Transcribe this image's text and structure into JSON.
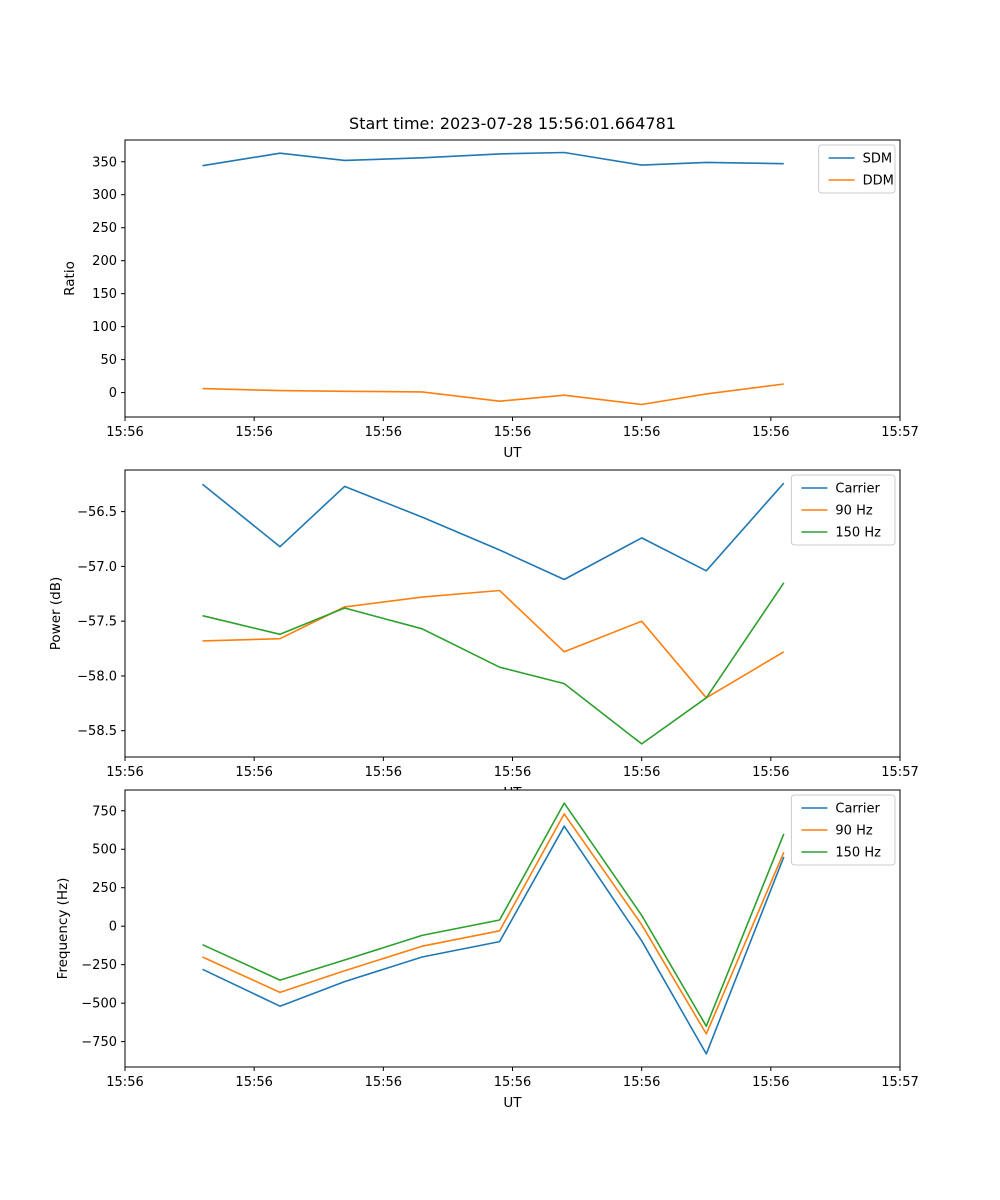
{
  "figure": {
    "title": "Start time: 2023-07-28 15:56:01.664781"
  },
  "colors": {
    "blue": "#1f77b4",
    "orange": "#ff7f0e",
    "green": "#2ca02c",
    "legend_border": "#cccccc",
    "axis": "#000000"
  },
  "chart_data": [
    {
      "type": "line",
      "title": "Start time: 2023-07-28 15:56:01.664781",
      "xlabel": "UT",
      "ylabel": "Ratio",
      "x": [
        6,
        12,
        17,
        23,
        29,
        34,
        40,
        45,
        51
      ],
      "xlim": [
        0,
        60
      ],
      "xticks": [
        0,
        10,
        20,
        30,
        40,
        50,
        60
      ],
      "xtick_labels": [
        "15:56",
        "15:56",
        "15:56",
        "15:56",
        "15:56",
        "15:56",
        "15:57"
      ],
      "ylim": [
        -37,
        383
      ],
      "yticks": [
        0,
        50,
        100,
        150,
        200,
        250,
        300,
        350
      ],
      "ytick_labels": [
        "0",
        "50",
        "100",
        "150",
        "200",
        "250",
        "300",
        "350"
      ],
      "grid": false,
      "legend_position": "upper right",
      "series": [
        {
          "name": "SDM",
          "color": "#1f77b4",
          "values": [
            344,
            363,
            352,
            356,
            362,
            364,
            345,
            349,
            347
          ]
        },
        {
          "name": "DDM",
          "color": "#ff7f0e",
          "values": [
            6,
            3,
            2,
            1,
            -13,
            -4,
            -18,
            -2,
            13
          ]
        }
      ]
    },
    {
      "type": "line",
      "title": "",
      "xlabel": "UT",
      "ylabel": "Power (dB)",
      "x": [
        6,
        12,
        17,
        23,
        29,
        34,
        40,
        45,
        51
      ],
      "xlim": [
        0,
        60
      ],
      "xticks": [
        0,
        10,
        20,
        30,
        40,
        50,
        60
      ],
      "xtick_labels": [
        "15:56",
        "15:56",
        "15:56",
        "15:56",
        "15:56",
        "15:56",
        "15:57"
      ],
      "ylim": [
        -58.74,
        -56.12
      ],
      "yticks": [
        -58.5,
        -58.0,
        -57.5,
        -57.0,
        -56.5
      ],
      "ytick_labels": [
        "−58.5",
        "−58.0",
        "−57.5",
        "−57.0",
        "−56.5"
      ],
      "grid": false,
      "legend_position": "upper right",
      "series": [
        {
          "name": "Carrier",
          "color": "#1f77b4",
          "values": [
            -56.25,
            -56.82,
            -56.27,
            -56.55,
            -56.85,
            -57.12,
            -56.74,
            -57.04,
            -56.24
          ]
        },
        {
          "name": "90 Hz",
          "color": "#ff7f0e",
          "values": [
            -57.68,
            -57.66,
            -57.37,
            -57.28,
            -57.22,
            -57.78,
            -57.5,
            -58.2,
            -57.78
          ]
        },
        {
          "name": "150 Hz",
          "color": "#2ca02c",
          "values": [
            -57.45,
            -57.62,
            -57.38,
            -57.57,
            -57.92,
            -58.07,
            -58.62,
            -58.2,
            -57.15
          ]
        }
      ]
    },
    {
      "type": "line",
      "title": "",
      "xlabel": "UT",
      "ylabel": "Frequency (Hz)",
      "x": [
        6,
        12,
        17,
        23,
        29,
        34,
        40,
        45,
        51
      ],
      "xlim": [
        0,
        60
      ],
      "xticks": [
        0,
        10,
        20,
        30,
        40,
        50,
        60
      ],
      "xtick_labels": [
        "15:56",
        "15:56",
        "15:56",
        "15:56",
        "15:56",
        "15:56",
        "15:57"
      ],
      "ylim": [
        -915,
        885
      ],
      "yticks": [
        -750,
        -500,
        -250,
        0,
        250,
        500,
        750
      ],
      "ytick_labels": [
        "−750",
        "−500",
        "−250",
        "0",
        "250",
        "500",
        "750"
      ],
      "grid": false,
      "legend_position": "upper right",
      "series": [
        {
          "name": "Carrier",
          "color": "#1f77b4",
          "values": [
            -280,
            -520,
            -360,
            -200,
            -100,
            650,
            -95,
            -830,
            450
          ]
        },
        {
          "name": "90 Hz",
          "color": "#ff7f0e",
          "values": [
            -200,
            -430,
            -290,
            -130,
            -30,
            730,
            10,
            -700,
            480
          ]
        },
        {
          "name": "150 Hz",
          "color": "#2ca02c",
          "values": [
            -120,
            -350,
            -220,
            -60,
            40,
            800,
            70,
            -650,
            600
          ]
        }
      ]
    }
  ]
}
